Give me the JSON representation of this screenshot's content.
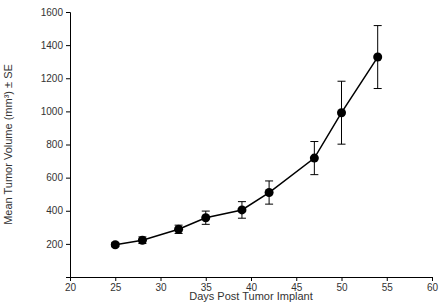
{
  "chart_data": {
    "type": "line",
    "x_label": "Days Post Tumor Implant",
    "y_label": "Mean Tumor Volume (mm³) ± SE",
    "x": [
      25,
      28,
      32,
      35,
      39,
      42,
      47,
      50,
      54
    ],
    "values": [
      195,
      222,
      288,
      358,
      405,
      510,
      718,
      992,
      1328
    ],
    "errors": [
      12,
      20,
      25,
      40,
      50,
      70,
      100,
      190,
      190
    ],
    "color": "#000000",
    "marker": "circle",
    "line_style": "solid",
    "xlim": [
      20,
      60
    ],
    "xticks": [
      20,
      25,
      30,
      35,
      40,
      45,
      50,
      55,
      60
    ],
    "ylim": [
      0,
      1600
    ],
    "yticks": [
      200,
      400,
      600,
      800,
      1000,
      1200,
      1400,
      1600
    ],
    "grid": false
  }
}
